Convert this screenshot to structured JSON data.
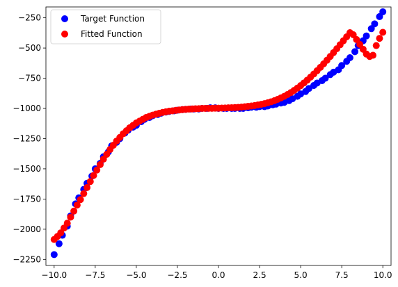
{
  "chart_data": {
    "type": "scatter",
    "title": "",
    "xlabel": "",
    "ylabel": "",
    "xlim": [
      -10.5,
      10.5
    ],
    "ylim": [
      -2300,
      -160
    ],
    "xticks": [
      -10.0,
      -7.5,
      -5.0,
      -2.5,
      0.0,
      2.5,
      5.0,
      7.5,
      10.0
    ],
    "xtick_labels": [
      "−10.0",
      "−7.5",
      "−5.0",
      "−2.5",
      "0.0",
      "2.5",
      "5.0",
      "7.5",
      "10.0"
    ],
    "yticks": [
      -2250,
      -2000,
      -1750,
      -1500,
      -1250,
      -1000,
      -750,
      -500,
      -250
    ],
    "ytick_labels": [
      "−2250",
      "−2000",
      "−1750",
      "−1500",
      "−1250",
      "−1000",
      "−750",
      "−500",
      "−250"
    ],
    "grid": false,
    "legend_position": "top-left",
    "series": [
      {
        "name": "Target Function",
        "color": "#0000ff",
        "x": [
          -10.0,
          -9.7,
          -9.5,
          -9.2,
          -9.0,
          -8.7,
          -8.5,
          -8.2,
          -8.0,
          -7.7,
          -7.5,
          -7.2,
          -7.0,
          -6.7,
          -6.5,
          -6.2,
          -6.0,
          -5.7,
          -5.5,
          -5.2,
          -5.0,
          -4.7,
          -4.5,
          -4.2,
          -4.0,
          -3.7,
          -3.5,
          -3.2,
          -3.0,
          -2.7,
          -2.5,
          -2.2,
          -2.0,
          -1.7,
          -1.5,
          -1.2,
          -1.0,
          -0.7,
          -0.5,
          -0.2,
          0.0,
          0.3,
          0.5,
          0.8,
          1.0,
          1.3,
          1.5,
          1.8,
          2.0,
          2.3,
          2.5,
          2.8,
          3.0,
          3.3,
          3.5,
          3.8,
          4.0,
          4.3,
          4.5,
          4.8,
          5.0,
          5.3,
          5.5,
          5.8,
          6.0,
          6.3,
          6.5,
          6.8,
          7.0,
          7.3,
          7.5,
          7.8,
          8.0,
          8.3,
          8.5,
          8.8,
          9.0,
          9.3,
          9.5,
          9.8,
          10.0
        ],
        "y": [
          -2210,
          -2120,
          -2050,
          -1975,
          -1890,
          -1790,
          -1740,
          -1670,
          -1620,
          -1560,
          -1500,
          -1455,
          -1400,
          -1360,
          -1310,
          -1280,
          -1250,
          -1205,
          -1180,
          -1155,
          -1140,
          -1110,
          -1090,
          -1075,
          -1060,
          -1050,
          -1040,
          -1030,
          -1025,
          -1020,
          -1015,
          -1010,
          -1008,
          -1005,
          -1005,
          -1005,
          -1000,
          -1000,
          -995,
          -995,
          -1000,
          -1000,
          -1000,
          -1000,
          -1000,
          -1000,
          -1000,
          -995,
          -990,
          -990,
          -985,
          -985,
          -980,
          -970,
          -965,
          -955,
          -950,
          -935,
          -920,
          -900,
          -880,
          -860,
          -835,
          -810,
          -790,
          -770,
          -750,
          -720,
          -700,
          -680,
          -645,
          -610,
          -580,
          -530,
          -480,
          -440,
          -400,
          -340,
          -300,
          -240,
          -200
        ]
      },
      {
        "name": "Fitted Function",
        "color": "#ff0000",
        "x": [
          -10.0,
          -9.8,
          -9.6,
          -9.4,
          -9.2,
          -9.0,
          -8.8,
          -8.6,
          -8.4,
          -8.2,
          -8.0,
          -7.8,
          -7.6,
          -7.4,
          -7.2,
          -7.0,
          -6.8,
          -6.6,
          -6.4,
          -6.2,
          -6.0,
          -5.8,
          -5.6,
          -5.4,
          -5.2,
          -5.0,
          -4.8,
          -4.6,
          -4.4,
          -4.2,
          -4.0,
          -3.8,
          -3.6,
          -3.4,
          -3.2,
          -3.0,
          -2.8,
          -2.6,
          -2.4,
          -2.2,
          -2.0,
          -1.8,
          -1.6,
          -1.4,
          -1.2,
          -1.0,
          -0.8,
          -0.6,
          -0.4,
          -0.2,
          0.0,
          0.2,
          0.4,
          0.6,
          0.8,
          1.0,
          1.2,
          1.4,
          1.6,
          1.8,
          2.0,
          2.2,
          2.4,
          2.6,
          2.8,
          3.0,
          3.2,
          3.4,
          3.6,
          3.8,
          4.0,
          4.2,
          4.4,
          4.6,
          4.8,
          5.0,
          5.2,
          5.4,
          5.6,
          5.8,
          6.0,
          6.2,
          6.4,
          6.6,
          6.8,
          7.0,
          7.2,
          7.4,
          7.6,
          7.8,
          8.0,
          8.2,
          8.4,
          8.6,
          8.8,
          9.0,
          9.2,
          9.4,
          9.6,
          9.8,
          10.0
        ],
        "y": [
          -2085,
          -2060,
          -2030,
          -1990,
          -1950,
          -1900,
          -1850,
          -1800,
          -1755,
          -1705,
          -1655,
          -1605,
          -1555,
          -1510,
          -1465,
          -1420,
          -1380,
          -1340,
          -1305,
          -1270,
          -1240,
          -1210,
          -1185,
          -1160,
          -1140,
          -1120,
          -1105,
          -1090,
          -1075,
          -1065,
          -1055,
          -1047,
          -1040,
          -1033,
          -1028,
          -1023,
          -1020,
          -1016,
          -1013,
          -1010,
          -1008,
          -1006,
          -1004,
          -1003,
          -1002,
          -1000,
          -1000,
          -999,
          -999,
          -998,
          -998,
          -997,
          -996,
          -995,
          -994,
          -993,
          -991,
          -989,
          -986,
          -983,
          -980,
          -976,
          -971,
          -966,
          -960,
          -953,
          -945,
          -936,
          -925,
          -913,
          -900,
          -885,
          -869,
          -851,
          -832,
          -811,
          -789,
          -766,
          -741,
          -715,
          -688,
          -660,
          -631,
          -601,
          -570,
          -538,
          -506,
          -473,
          -440,
          -407,
          -373,
          -390,
          -430,
          -470,
          -510,
          -550,
          -570,
          -560,
          -480,
          -420,
          -370
        ]
      }
    ]
  }
}
